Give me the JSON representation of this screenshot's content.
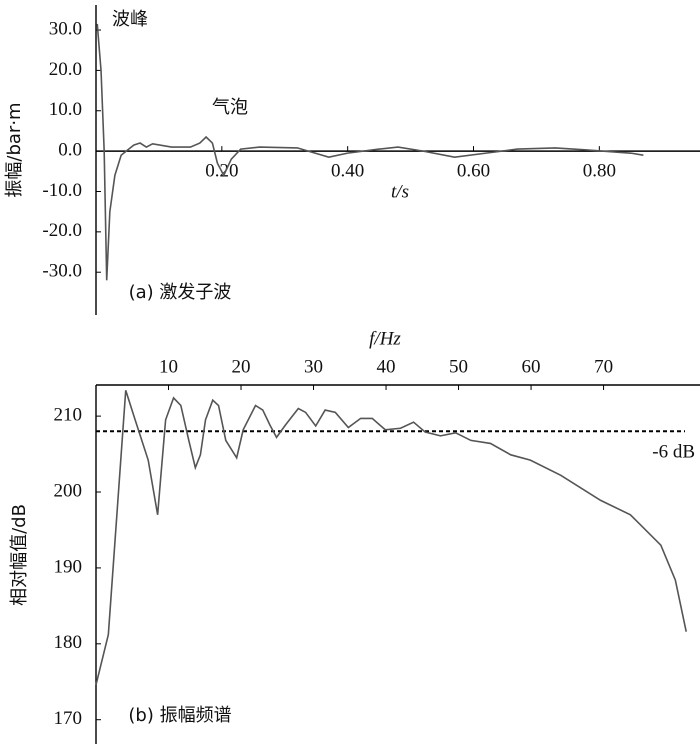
{
  "chart_data": [
    {
      "type": "line",
      "title": "(a) 激发子波",
      "xlabel": "t/s",
      "ylabel": "振幅/bar·m",
      "annotations": [
        "波峰",
        "气泡"
      ],
      "x": [
        0.002,
        0.008,
        0.013,
        0.017,
        0.022,
        0.03,
        0.04,
        0.06,
        0.07,
        0.08,
        0.09,
        0.12,
        0.15,
        0.165,
        0.175,
        0.185,
        0.193,
        0.203,
        0.215,
        0.23,
        0.26,
        0.32,
        0.37,
        0.4,
        0.45,
        0.48,
        0.52,
        0.57,
        0.62,
        0.67,
        0.73,
        0.78,
        0.85,
        0.87
      ],
      "series": [
        {
          "name": "激发子波",
          "color": "#555555",
          "values": [
            31.5,
            20,
            0,
            -32,
            -15,
            -6,
            -1,
            1.5,
            2,
            1,
            1.8,
            1,
            1,
            2,
            3.5,
            2,
            -3,
            -6,
            -2,
            0.5,
            1,
            0.8,
            -1.5,
            -0.5,
            0.5,
            1,
            0,
            -1.5,
            -0.5,
            0.5,
            0.8,
            0.3,
            -0.5,
            -1
          ]
        }
      ],
      "xlim": [
        0,
        0.96
      ],
      "ylim": [
        -40.6,
        36.2
      ],
      "xticks": [
        {
          "value": 0.2,
          "label": "0.20"
        },
        {
          "value": 0.4,
          "label": "0.40"
        },
        {
          "value": 0.6,
          "label": "0.60"
        },
        {
          "value": 0.8,
          "label": "0.80"
        }
      ],
      "yticks": [
        {
          "value": 30,
          "label": "30.0"
        },
        {
          "value": 20,
          "label": "20.0"
        },
        {
          "value": 10,
          "label": "10.0"
        },
        {
          "value": 0,
          "label": "0.0"
        },
        {
          "value": -10,
          "label": "-10.0"
        },
        {
          "value": -20,
          "label": "-20.0"
        },
        {
          "value": -30,
          "label": "-30.0"
        }
      ],
      "grid": false
    },
    {
      "type": "line",
      "title": "(b) 振幅频谱",
      "xlabel": "f/Hz",
      "ylabel": "相对幅值/dB",
      "reference_line": {
        "value": 208,
        "label": "-6 dB"
      },
      "x": [
        0,
        1.7,
        4.1,
        5.4,
        7.2,
        8.5,
        8.9,
        9.6,
        10.7,
        11.7,
        12.8,
        13.7,
        14.4,
        15.1,
        16.1,
        16.9,
        17.9,
        19.4,
        20.3,
        22,
        23,
        24,
        24.9,
        26.1,
        27.9,
        28.9,
        30.3,
        31.6,
        33,
        34.8,
        36.5,
        38.1,
        39.9,
        42,
        43.8,
        45.4,
        47.5,
        49.6,
        51.7,
        54.4,
        57.2,
        59.9,
        64.1,
        69.6,
        73.7,
        77.9,
        79.9,
        81.4
      ],
      "series": [
        {
          "name": "振幅频谱",
          "color": "#555555",
          "values": [
            174.6,
            181.2,
            213.4,
            209.5,
            204.2,
            197,
            201.6,
            209.5,
            212.4,
            211.4,
            206.8,
            203.2,
            204.9,
            209.5,
            212.1,
            211.4,
            206.8,
            204.5,
            208.2,
            211.4,
            210.8,
            208.8,
            207.2,
            208.8,
            211,
            210.5,
            208.7,
            210.8,
            210.5,
            208.5,
            209.7,
            209.7,
            208.2,
            208.4,
            209.2,
            207.9,
            207.4,
            207.8,
            206.8,
            206.4,
            204.9,
            204.2,
            202.2,
            198.9,
            197,
            193,
            188.4,
            181.6
          ]
        }
      ],
      "xlim": [
        0,
        83.3
      ],
      "ylim": [
        166.8,
        214.1
      ],
      "xticks": [
        10,
        20,
        30,
        40,
        50,
        60,
        70
      ],
      "yticks": [
        210,
        200,
        190,
        180,
        170
      ],
      "grid": false
    }
  ]
}
